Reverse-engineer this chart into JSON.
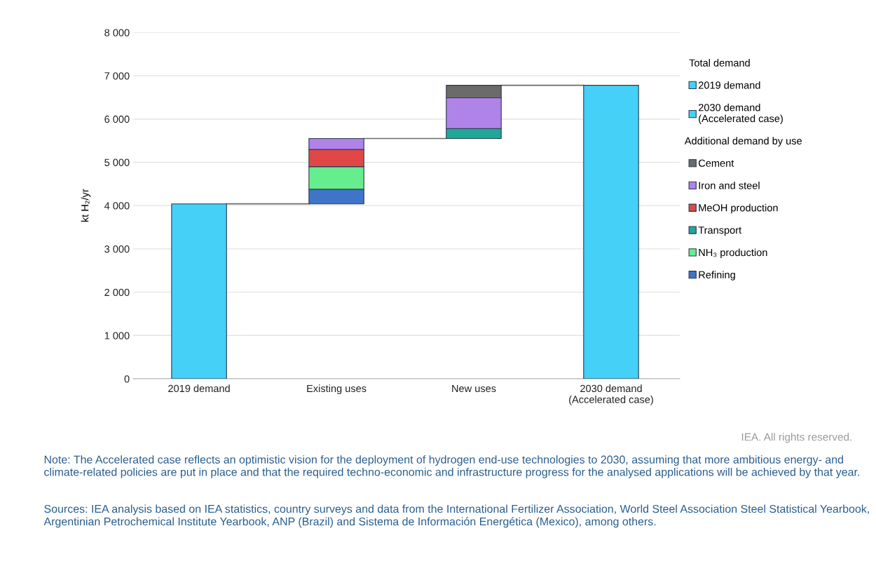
{
  "chart_data": {
    "type": "bar",
    "ylabel": "kt H₂/yr",
    "legend_title": "Total demand",
    "legend": "right",
    "grid": "y",
    "categories": [
      "2019 demand",
      "Existing uses",
      "New uses",
      "2030 demand\n(Accelerated case)"
    ],
    "series": [
      {
        "name": "Refining",
        "color": "#3f74c9",
        "values": [
          null,
          340,
          null,
          null
        ],
        "base": [
          null,
          4040,
          null,
          null
        ]
      },
      {
        "name": "NH₃ production",
        "color": "#66ee8e",
        "values": [
          null,
          520,
          null,
          null
        ],
        "base": [
          null,
          4380,
          null,
          null
        ]
      },
      {
        "name": "Transport",
        "color": "#1fa89a",
        "values": [
          null,
          null,
          230,
          null
        ],
        "base": [
          null,
          null,
          5550,
          null
        ]
      },
      {
        "name": "MeOH production",
        "color": "#e04848",
        "values": [
          null,
          400,
          null,
          null
        ],
        "base": [
          null,
          4900,
          null,
          null
        ]
      },
      {
        "name": "Iron and steel",
        "color": "#b083e8",
        "values": [
          null,
          250,
          710,
          null
        ],
        "base": [
          null,
          5300,
          5780,
          null
        ]
      },
      {
        "name": "Cement",
        "color": "#6b6b6b",
        "values": [
          null,
          null,
          290,
          null
        ],
        "base": [
          null,
          null,
          6490,
          null
        ]
      },
      {
        "name": "2030 demand\n(Accelerated case)",
        "color": "#45d0f8",
        "values": [
          null,
          null,
          null,
          6780
        ],
        "base": [
          null,
          null,
          null,
          0
        ]
      },
      {
        "name": "2019 demand",
        "color": "#45d0f8",
        "values": [
          4040,
          null,
          null,
          null
        ],
        "base": [
          0,
          null,
          null,
          null
        ]
      }
    ],
    "ylim": [
      0,
      8000
    ],
    "yticks": [
      0,
      {
        "value": 1000,
        "label": "1 000"
      },
      {
        "value": 2000,
        "label": "2 000"
      },
      {
        "value": 3000,
        "label": "3 000"
      },
      {
        "value": 4000,
        "label": "4 000"
      },
      {
        "value": 5000,
        "label": "5 000"
      },
      {
        "value": 6000,
        "label": "6 000"
      },
      {
        "value": 7000,
        "label": "7 000"
      },
      {
        "value": 8000,
        "label": "8 000"
      }
    ],
    "annotations": [
      "Additional demand by use",
      "IEA. All rights reserved.",
      "Note: The Accelerated case reflects an optimistic vision for the deployment of hydrogen end-use technologies to 2030, assuming that more ambitious energy- and climate-related policies are put in place and that the required techno-economic and infrastructure progress for the analysed applications will be achieved by that year.",
      "Sources: IEA analysis based on IEA statistics, country surveys and data from the International Fertilizer Association, World Steel Association Steel Statistical Yearbook, Argentinian Petrochemical Institute Yearbook, ANP (Brazil) and Sistema de Información Energética (Mexico), among others."
    ]
  }
}
